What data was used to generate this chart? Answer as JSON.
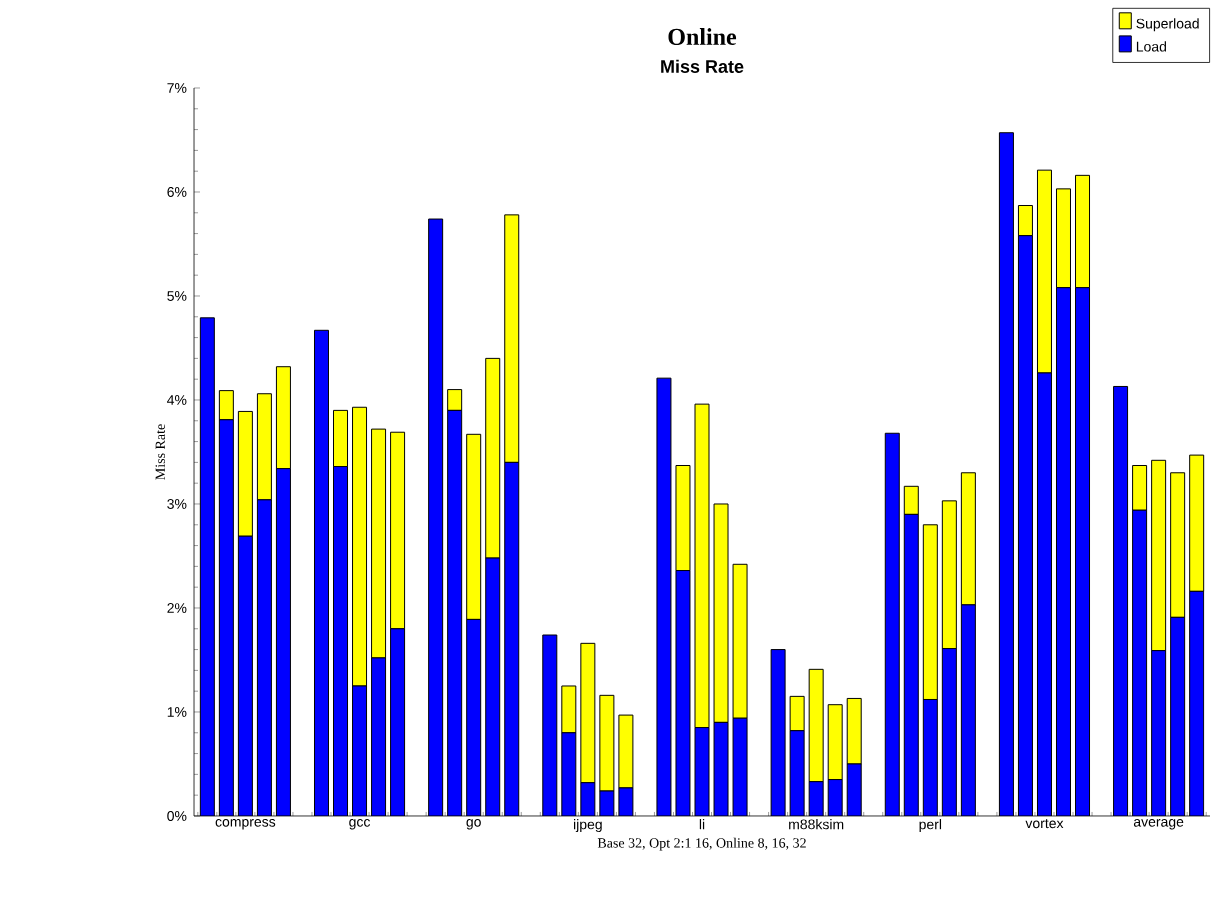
{
  "chart_data": {
    "type": "bar",
    "title": "Online",
    "subtitle": "Miss Rate",
    "xlabel": "Base 32, Opt 2:1 16, Online 8, 16, 32",
    "ylabel": "Miss Rate",
    "stacked": true,
    "legend": "top right",
    "categories": [
      null,
      null,
      "compress",
      null,
      null,
      null,
      null,
      null,
      "gcc",
      null,
      null,
      null,
      null,
      null,
      "go",
      null,
      null,
      null,
      null,
      null,
      "ijpeg",
      null,
      null,
      null,
      null,
      null,
      "li",
      null,
      null,
      null,
      null,
      null,
      "m88ksim",
      null,
      null,
      null,
      null,
      null,
      "perl",
      null,
      null,
      null,
      null,
      null,
      "vortex",
      null,
      null,
      null,
      null,
      null,
      "average",
      null,
      null
    ],
    "ylim": [
      0,
      7
    ],
    "yticks": [
      {
        "value": 0,
        "label": "0%"
      },
      {
        "value": 1,
        "label": "1%"
      },
      {
        "value": 2,
        "label": "2%"
      },
      {
        "value": 3,
        "label": "3%"
      },
      {
        "value": 4,
        "label": "4%"
      },
      {
        "value": 5,
        "label": "5%"
      },
      {
        "value": 6,
        "label": "6%"
      },
      {
        "value": 7,
        "label": "7%"
      }
    ],
    "series": [
      {
        "name": "Load",
        "color": "#0000ff",
        "values": [
          4.79,
          3.81,
          2.69,
          3.04,
          3.34,
          null,
          4.67,
          3.36,
          1.25,
          1.52,
          1.8,
          null,
          5.74,
          3.9,
          1.89,
          2.48,
          3.4,
          null,
          1.74,
          0.8,
          0.32,
          0.24,
          0.27,
          null,
          4.21,
          2.36,
          0.85,
          0.9,
          0.94,
          null,
          1.6,
          0.82,
          0.33,
          0.35,
          0.5,
          null,
          3.68,
          2.9,
          1.12,
          1.61,
          2.03,
          null,
          6.57,
          5.58,
          4.26,
          5.08,
          5.08,
          null,
          4.13,
          2.94,
          1.59,
          1.91,
          2.16
        ]
      },
      {
        "name": "Superload",
        "color": "#ffff00",
        "values": [
          0,
          0.28,
          1.2,
          1.02,
          0.98,
          null,
          0,
          0.54,
          2.68,
          2.2,
          1.89,
          null,
          0,
          0.2,
          1.78,
          1.92,
          2.38,
          null,
          0,
          0.45,
          1.34,
          0.92,
          0.7,
          null,
          0,
          1.01,
          3.11,
          2.1,
          1.48,
          null,
          0,
          0.33,
          1.08,
          0.72,
          0.63,
          null,
          0,
          0.27,
          1.68,
          1.42,
          1.27,
          null,
          0,
          0.29,
          1.95,
          0.95,
          1.08,
          null,
          0,
          0.43,
          1.83,
          1.39,
          1.31
        ]
      }
    ]
  }
}
